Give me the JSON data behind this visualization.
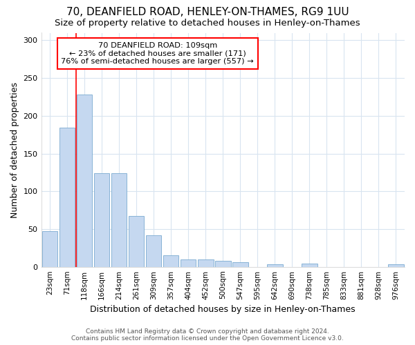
{
  "title": "70, DEANFIELD ROAD, HENLEY-ON-THAMES, RG9 1UU",
  "subtitle": "Size of property relative to detached houses in Henley-on-Thames",
  "xlabel": "Distribution of detached houses by size in Henley-on-Thames",
  "ylabel": "Number of detached properties",
  "categories": [
    "23sqm",
    "71sqm",
    "118sqm",
    "166sqm",
    "214sqm",
    "261sqm",
    "309sqm",
    "357sqm",
    "404sqm",
    "452sqm",
    "500sqm",
    "547sqm",
    "595sqm",
    "642sqm",
    "690sqm",
    "738sqm",
    "785sqm",
    "833sqm",
    "881sqm",
    "928sqm",
    "976sqm"
  ],
  "values": [
    47,
    184,
    228,
    124,
    124,
    67,
    42,
    15,
    10,
    10,
    8,
    6,
    0,
    3,
    0,
    4,
    0,
    0,
    0,
    0,
    3
  ],
  "bar_color": "#c5d8f0",
  "bar_edge_color": "#7aaad0",
  "vline_color": "red",
  "vline_pos": 1.5,
  "annotation_line1": "70 DEANFIELD ROAD: 109sqm",
  "annotation_line2": "← 23% of detached houses are smaller (171)",
  "annotation_line3": "76% of semi-detached houses are larger (557) →",
  "annotation_box_color": "white",
  "annotation_box_edge": "red",
  "ylim": [
    0,
    310
  ],
  "yticks": [
    0,
    50,
    100,
    150,
    200,
    250,
    300
  ],
  "footer_line1": "Contains HM Land Registry data © Crown copyright and database right 2024.",
  "footer_line2": "Contains public sector information licensed under the Open Government Licence v3.0.",
  "bg_color": "#ffffff",
  "plot_bg_color": "#ffffff",
  "title_fontsize": 11,
  "subtitle_fontsize": 9.5,
  "ylabel_fontsize": 9,
  "xlabel_fontsize": 9,
  "tick_fontsize": 7.5,
  "footer_fontsize": 6.5,
  "grid_color": "#d8e4f0"
}
